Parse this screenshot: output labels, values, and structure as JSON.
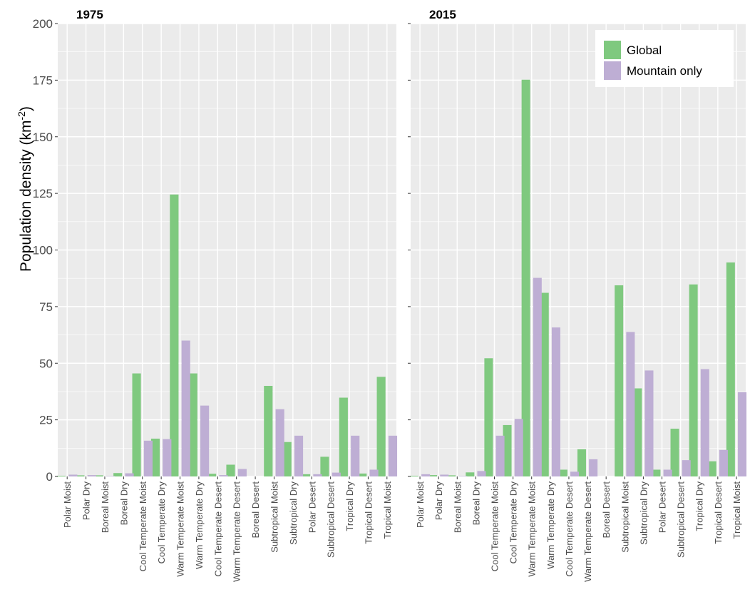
{
  "chart_data": {
    "type": "bar",
    "ylabel_base": "Population density (km",
    "ylabel_sup": "-2",
    "ylabel_end": ")",
    "ylim": [
      0,
      200
    ],
    "yticks": [
      0,
      25,
      50,
      75,
      100,
      125,
      150,
      175,
      200
    ],
    "grid": true,
    "legend_position": "top-right",
    "colors": {
      "Global": "#7fc97f",
      "Mountain only": "#beaed4",
      "panel_bg": "#ebebeb",
      "grid": "#ffffff"
    },
    "categories": [
      "Polar Moist",
      "Polar Dry",
      "Boreal Moist",
      "Boreal Dry",
      "Cool Temperate Moist",
      "Cool Temperate Dry",
      "Warm Temperate Moist",
      "Warm Temperate Dry",
      "Cool Temperate Desert",
      "Warm Temperate Desert",
      "Boreal Desert",
      "Subtropical Moist",
      "Subtropical Dry",
      "Polar Desert",
      "Subtropical Desert",
      "Tropical Dry",
      "Tropical Desert",
      "Tropical Moist"
    ],
    "panels": [
      {
        "title": "1975",
        "series": [
          {
            "name": "Global",
            "values": [
              0.3,
              0.5,
              0.5,
              1.5,
              45.5,
              16.7,
              124.5,
              45.5,
              1.2,
              5.2,
              0,
              40.0,
              15.2,
              1.0,
              8.7,
              34.8,
              1.3,
              44.0
            ]
          },
          {
            "name": "Mountain only",
            "values": [
              0.8,
              0.6,
              0.2,
              1.4,
              15.8,
              16.5,
              60.0,
              31.3,
              0.6,
              3.3,
              0,
              29.7,
              18.0,
              1.0,
              1.7,
              18.0,
              3.0,
              18.0
            ]
          }
        ]
      },
      {
        "title": "2015",
        "series": [
          {
            "name": "Global",
            "values": [
              0.3,
              0.6,
              0.5,
              1.8,
              52.2,
              22.7,
              175.2,
              81.1,
              3.0,
              12.0,
              0,
              84.4,
              38.9,
              3.0,
              21.1,
              84.8,
              6.7,
              94.5
            ]
          },
          {
            "name": "Mountain only",
            "values": [
              1.0,
              0.8,
              0.2,
              2.4,
              18.0,
              25.4,
              87.7,
              65.8,
              2.1,
              7.6,
              0,
              63.8,
              46.8,
              3.0,
              7.2,
              47.4,
              11.7,
              37.2
            ]
          }
        ]
      }
    ],
    "legend": [
      "Global",
      "Mountain only"
    ]
  }
}
